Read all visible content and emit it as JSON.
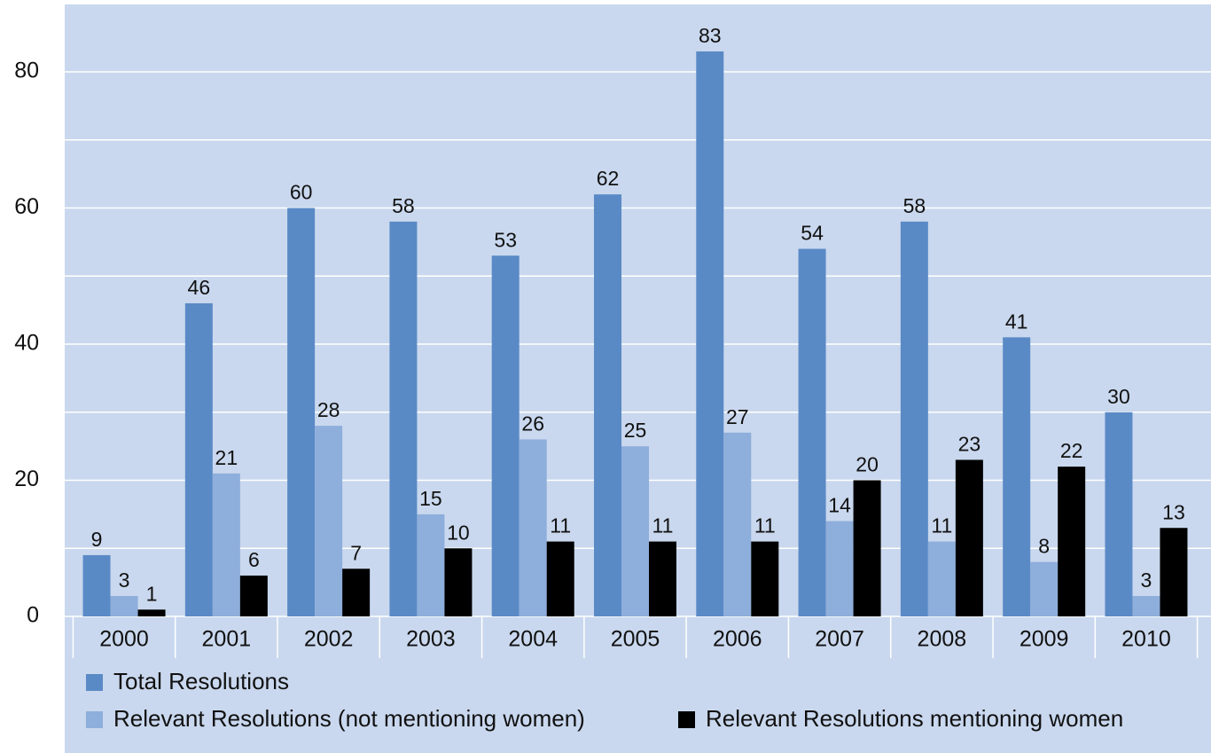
{
  "chart_data": {
    "type": "bar",
    "categories": [
      "2000",
      "2001",
      "2002",
      "2003",
      "2004",
      "2005",
      "2006",
      "2007",
      "2008",
      "2009",
      "2010"
    ],
    "series": [
      {
        "name": "Total Resolutions",
        "color": "#5a8ac6",
        "values": [
          9,
          46,
          60,
          58,
          53,
          62,
          83,
          54,
          58,
          41,
          30
        ]
      },
      {
        "name": "Relevant Resolutions (not mentioning women)",
        "color": "#8eaedb",
        "values": [
          3,
          21,
          28,
          15,
          26,
          25,
          27,
          14,
          11,
          8,
          3
        ]
      },
      {
        "name": "Relevant Resolutions mentioning women",
        "color": "#000000",
        "values": [
          1,
          6,
          7,
          10,
          11,
          11,
          11,
          20,
          23,
          22,
          13
        ]
      }
    ],
    "ylim": [
      0,
      90
    ],
    "yticks": [
      0,
      20,
      40,
      60,
      80
    ],
    "minor_grid": [
      10,
      30,
      50,
      70
    ],
    "grid": true,
    "background": "#c9d8ee",
    "legend": "bottom"
  }
}
